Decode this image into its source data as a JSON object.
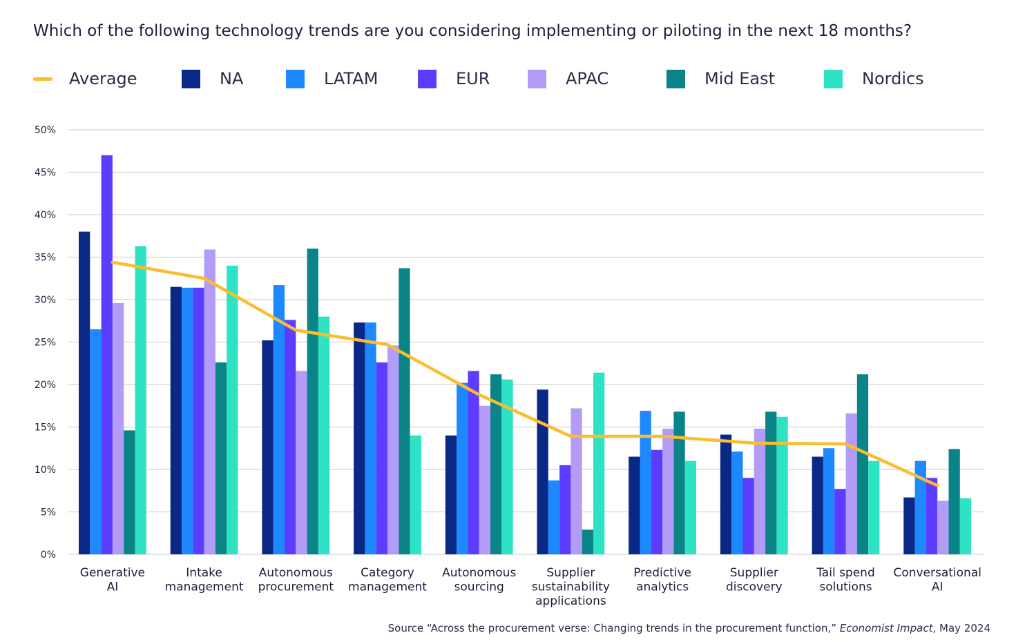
{
  "chart_data": {
    "type": "bar",
    "title": "Which of the following technology trends are you considering implementing or piloting in the next 18 months?",
    "categories": [
      [
        "Generative",
        "AI"
      ],
      [
        "Intake",
        "management"
      ],
      [
        "Autonomous",
        "procurement"
      ],
      [
        "Category",
        "management"
      ],
      [
        "Autonomous",
        "sourcing"
      ],
      [
        "Supplier",
        "sustainability",
        "applications"
      ],
      [
        "Predictive",
        "analytics"
      ],
      [
        "Supplier",
        "discovery"
      ],
      [
        "Tail spend",
        "solutions"
      ],
      [
        "Conversational",
        "AI"
      ]
    ],
    "series": [
      {
        "name": "NA",
        "color": "#0a2885",
        "values": [
          38,
          31.5,
          25.2,
          27.3,
          14,
          19.4,
          11.5,
          14.1,
          11.5,
          6.7
        ]
      },
      {
        "name": "LATAM",
        "color": "#1e88ff",
        "values": [
          26.5,
          31.4,
          31.7,
          27.3,
          20.2,
          8.7,
          16.9,
          12.1,
          12.5,
          11
        ]
      },
      {
        "name": "EUR",
        "color": "#5c3cff",
        "values": [
          47,
          31.4,
          27.6,
          22.6,
          21.6,
          10.5,
          12.3,
          9,
          7.7,
          9
        ]
      },
      {
        "name": "APAC",
        "color": "#b39cf8",
        "values": [
          29.6,
          35.9,
          21.6,
          24.6,
          17.5,
          17.2,
          14.8,
          14.8,
          16.6,
          6.3
        ]
      },
      {
        "name": "Mid East",
        "color": "#0a8487",
        "values": [
          14.6,
          22.6,
          36,
          33.7,
          21.2,
          2.9,
          16.8,
          16.8,
          21.2,
          12.4
        ]
      },
      {
        "name": "Nordics",
        "color": "#2ee3c4",
        "values": [
          36.3,
          34,
          28,
          14,
          20.6,
          21.4,
          11,
          16.2,
          11,
          6.6
        ]
      }
    ],
    "line": {
      "name": "Average",
      "color": "#fbbd2e",
      "values": [
        34.4,
        32.5,
        26.4,
        24.7,
        18.8,
        13.9,
        13.9,
        13.1,
        13,
        8.1
      ]
    },
    "ylim": [
      0,
      50
    ],
    "yticks": [
      0,
      5,
      10,
      15,
      20,
      25,
      30,
      35,
      40,
      45,
      50
    ],
    "ytick_suffix": "%",
    "grid": true,
    "legend": "top"
  },
  "source": {
    "prefix": "Source “Across the procurement verse: Changing trends in the procurement function,” ",
    "publication": "Economist Impact",
    "suffix": ", May 2024"
  }
}
